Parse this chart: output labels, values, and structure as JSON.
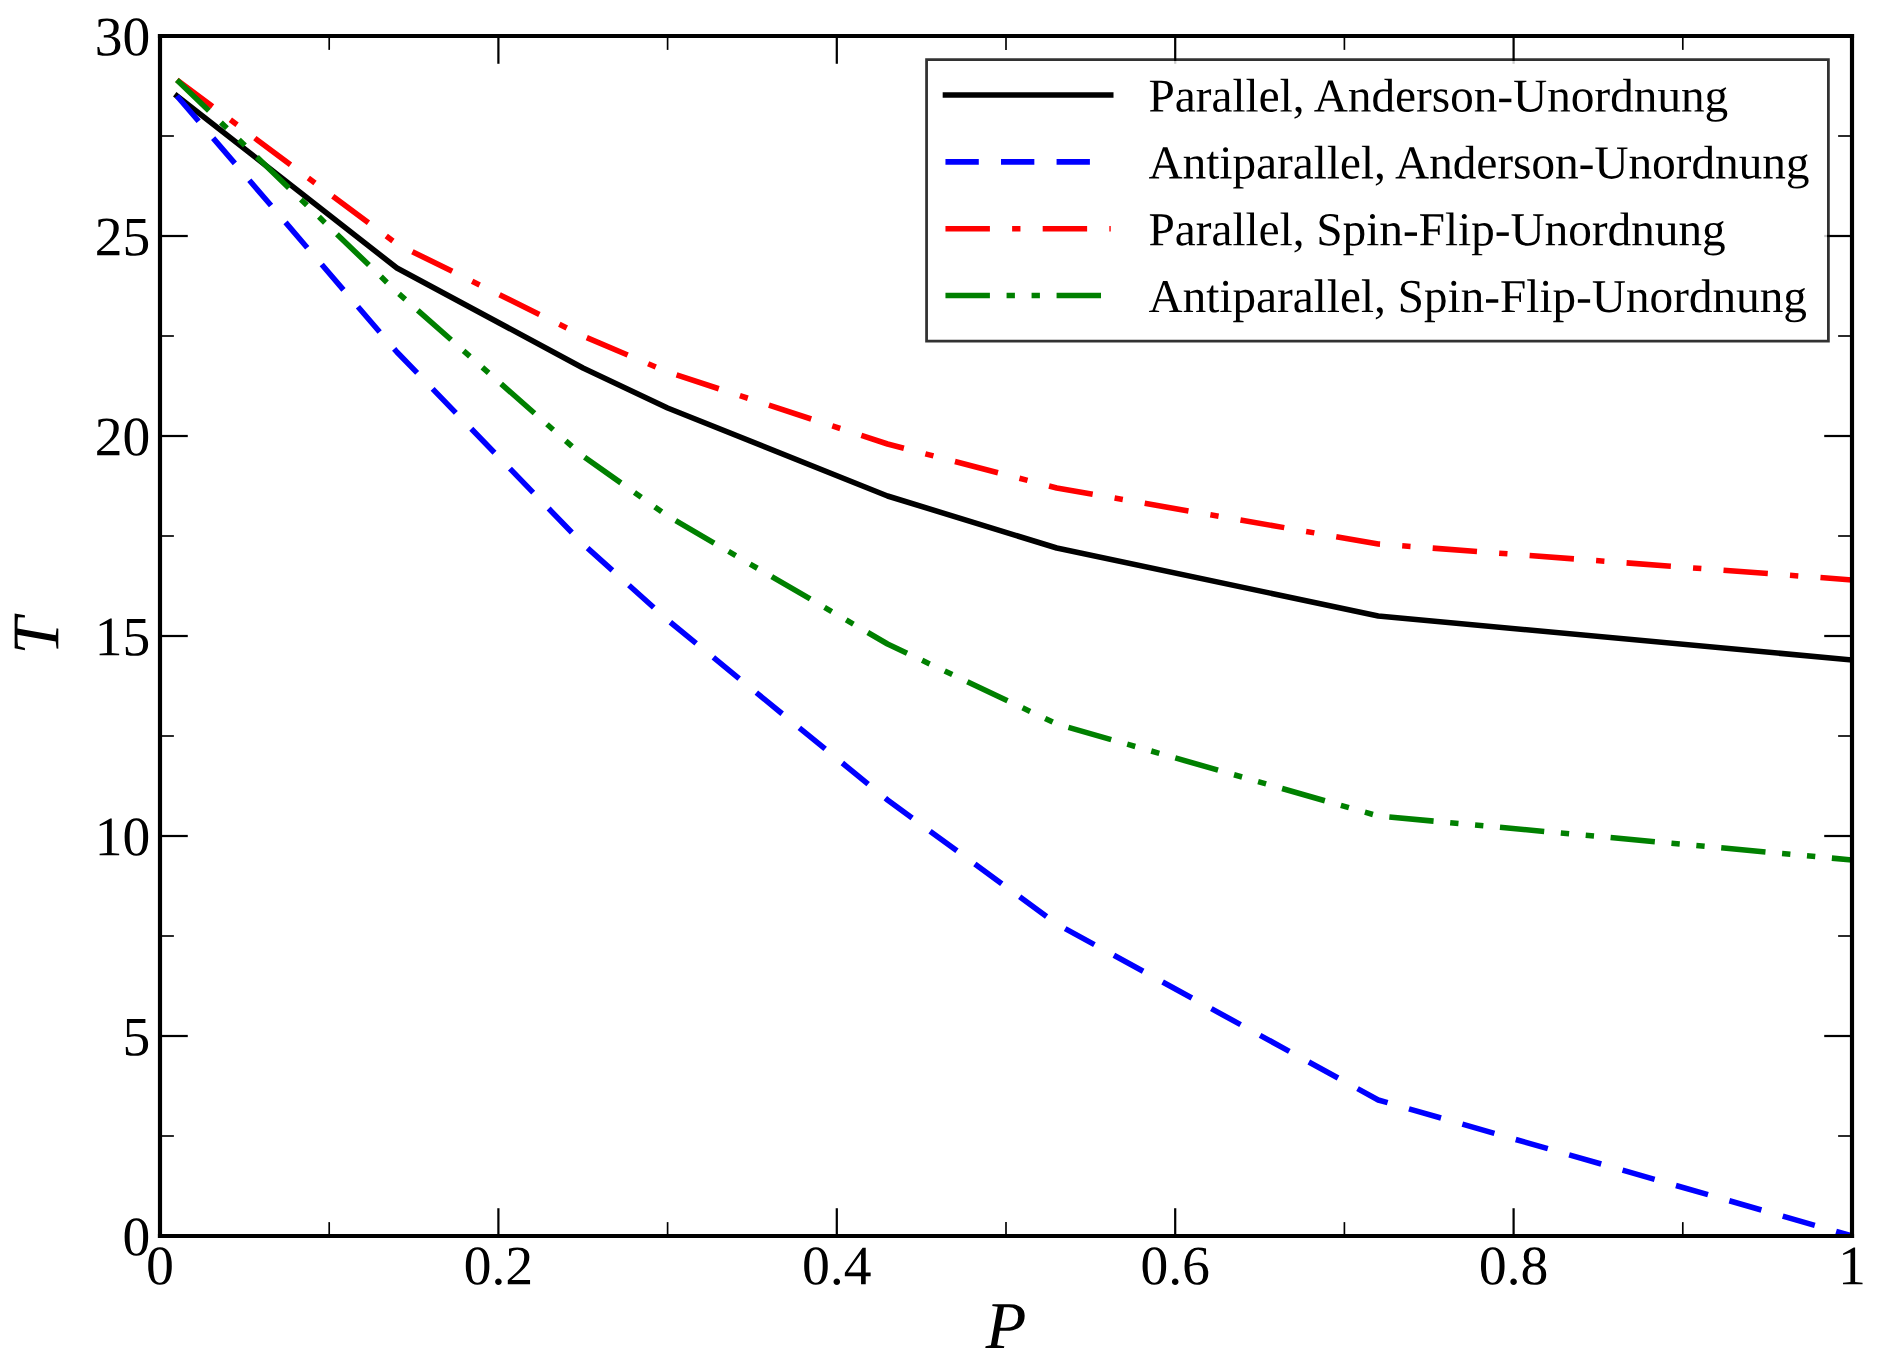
{
  "chart_data": {
    "type": "line",
    "xlabel": "P",
    "ylabel": "T",
    "x": [
      0.01,
      0.14,
      0.25,
      0.3,
      0.43,
      0.53,
      0.72,
      1.0
    ],
    "series": [
      {
        "name": "Parallel, Anderson-Unordnung",
        "color": "#000000",
        "line_style": "solid",
        "values": [
          28.5,
          24.2,
          21.7,
          20.7,
          18.5,
          17.2,
          15.5,
          14.4
        ]
      },
      {
        "name": "Antiparallel, Anderson-Unordnung",
        "color": "#0000ff",
        "line_style": "dashed",
        "values": [
          28.5,
          22.1,
          17.3,
          15.4,
          10.9,
          7.8,
          3.4,
          0
        ]
      },
      {
        "name": "Parallel, Spin-Flip-Unordnung",
        "color": "#ff0000",
        "line_style": "dashdot",
        "values": [
          28.9,
          24.8,
          22.5,
          21.6,
          19.8,
          18.7,
          17.3,
          16.4
        ]
      },
      {
        "name": "Antiparallel, Spin-Flip-Unordnung",
        "color": "#008000",
        "line_style": "dashdotdot",
        "values": [
          28.9,
          23.6,
          19.5,
          18.0,
          14.8,
          12.8,
          10.5,
          9.4
        ]
      }
    ],
    "xlim": [
      0,
      1
    ],
    "xticks": [
      0,
      0.2,
      0.4,
      0.6,
      0.8,
      {
        "value": 1,
        "label": "1"
      }
    ],
    "ylim": [
      0,
      30
    ],
    "yticks": [
      0,
      5,
      10,
      15,
      20,
      25,
      30
    ],
    "grid": false,
    "legend": "top right",
    "marker": "none"
  }
}
